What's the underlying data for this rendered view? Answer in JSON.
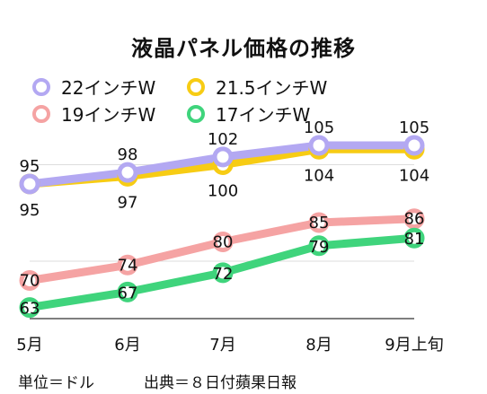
{
  "chart_data": {
    "type": "line",
    "title": "液晶パネル価格の推移",
    "categories": [
      "5月",
      "6月",
      "7月",
      "8月",
      "9月上旬"
    ],
    "ylim": [
      55,
      112
    ],
    "grid": true,
    "legend_position": "top",
    "series": [
      {
        "name": "22インチW",
        "values": [
          95,
          98,
          102,
          105,
          105
        ],
        "color": "#b3a8f2"
      },
      {
        "name": "21.5インチW",
        "values": [
          95,
          97,
          100,
          104,
          104
        ],
        "color": "#f7cc14"
      },
      {
        "name": "19インチW",
        "values": [
          70,
          74,
          80,
          85,
          86
        ],
        "color": "#f5a3a3"
      },
      {
        "name": "17インチW",
        "values": [
          63,
          67,
          72,
          79,
          81
        ],
        "color": "#3fd47c"
      }
    ]
  },
  "footer": {
    "unit": "単位＝ドル",
    "source": "出典＝８日付蘋果日報"
  }
}
